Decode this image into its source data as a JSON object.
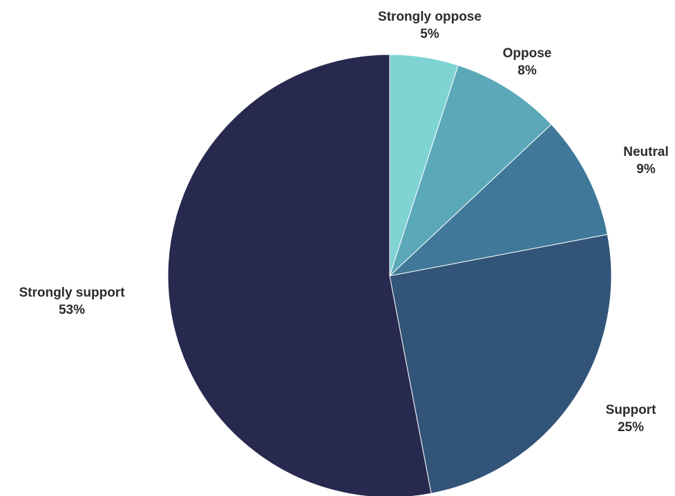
{
  "chart_data": {
    "type": "pie",
    "title": "",
    "start_angle_deg": 0,
    "direction": "clockwise",
    "slices": [
      {
        "label": "Strongly oppose",
        "value": 5,
        "value_label": "5%",
        "color": "#7fd3d3"
      },
      {
        "label": "Oppose",
        "value": 8,
        "value_label": "8%",
        "color": "#5ba8b8"
      },
      {
        "label": "Neutral",
        "value": 9,
        "value_label": "9%",
        "color": "#3f7898"
      },
      {
        "label": "Support",
        "value": 25,
        "value_label": "25%",
        "color": "#325478"
      },
      {
        "label": "Strongly support",
        "value": 53,
        "value_label": "53%",
        "color": "#27294e"
      }
    ]
  }
}
